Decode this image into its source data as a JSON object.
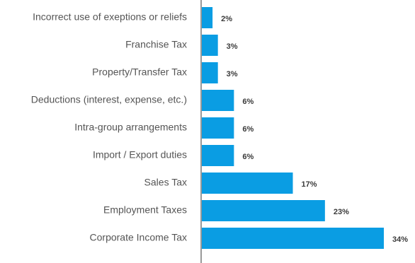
{
  "chart_data": {
    "type": "bar",
    "orientation": "horizontal",
    "categories": [
      "Incorrect use of exeptions or reliefs",
      "Franchise Tax",
      "Property/Transfer Tax",
      "Deductions (interest, expense, etc.)",
      "Intra-group arrangements",
      "Import / Export duties",
      "Sales Tax",
      "Employment Taxes",
      "Corporate Income Tax"
    ],
    "values": [
      2,
      3,
      3,
      6,
      6,
      6,
      17,
      23,
      34
    ],
    "value_labels": [
      "2%",
      "3%",
      "3%",
      "6%",
      "6%",
      "6%",
      "17%",
      "23%",
      "34%"
    ],
    "unit": "%",
    "xlim": [
      0,
      34
    ],
    "grid": false,
    "legend": "none"
  },
  "colors": {
    "bar": "#0a9de3",
    "axis": "#333333",
    "category_text": "#555555",
    "value_text": "#3a3a3a"
  }
}
